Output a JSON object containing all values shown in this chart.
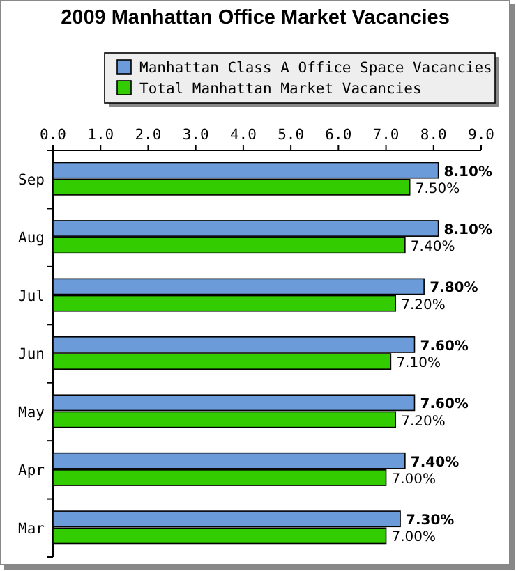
{
  "chart_data": {
    "type": "bar",
    "orientation": "horizontal",
    "title": "2009 Manhattan Office Market Vacancies",
    "categories": [
      "Sep",
      "Aug",
      "Jul",
      "Jun",
      "May",
      "Apr",
      "Mar"
    ],
    "series": [
      {
        "name": "Manhattan Class A Office Space Vacancies",
        "color": "#6b9bd8",
        "values": [
          8.1,
          8.1,
          7.8,
          7.6,
          7.6,
          7.4,
          7.3
        ],
        "value_labels": [
          "8.10%",
          "8.10%",
          "7.80%",
          "7.60%",
          "7.60%",
          "7.40%",
          "7.30%"
        ]
      },
      {
        "name": "Total Manhattan Market Vacancies",
        "color": "#33cc00",
        "values": [
          7.5,
          7.4,
          7.2,
          7.1,
          7.2,
          7.0,
          7.0
        ],
        "value_labels": [
          "7.50%",
          "7.40%",
          "7.20%",
          "7.10%",
          "7.20%",
          "7.00%",
          "7.00%"
        ]
      }
    ],
    "xlim": [
      0,
      9
    ],
    "xticks": [
      {
        "value": 0,
        "label": "0.0"
      },
      {
        "value": 1,
        "label": "1.0"
      },
      {
        "value": 2,
        "label": "2.0"
      },
      {
        "value": 3,
        "label": "3.0"
      },
      {
        "value": 4,
        "label": "4.0"
      },
      {
        "value": 5,
        "label": "5.0"
      },
      {
        "value": 6,
        "label": "6.0"
      },
      {
        "value": 7,
        "label": "7.0"
      },
      {
        "value": 8,
        "label": "8.0"
      },
      {
        "value": 9,
        "label": "9.0"
      }
    ],
    "legend": "top",
    "grid": false
  }
}
